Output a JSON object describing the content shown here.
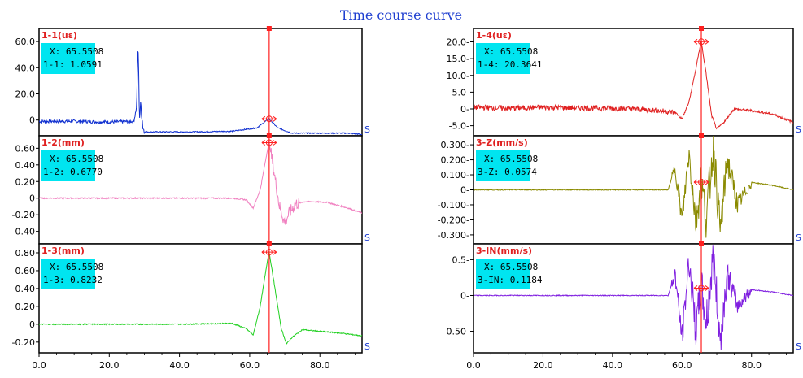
{
  "title": "Time course curve",
  "x_unit": "S",
  "cursor_x": 65.5508,
  "chart_data": {
    "type": "line",
    "title": "Time course curve",
    "xlim": [
      0,
      92
    ],
    "x_ticks": [
      0,
      20,
      40,
      60,
      80
    ],
    "x_tick_labels": [
      "0.0",
      "20.0",
      "40.0",
      "60.0",
      "80.0"
    ],
    "panels": [
      {
        "name": "1-1(uε)",
        "column": 0,
        "row": 0,
        "color": "#1030d0",
        "ylim": [
          -12,
          70
        ],
        "yticks": [
          60,
          40,
          20,
          0
        ],
        "ytick_labels": [
          "60.0",
          "40.0",
          "20.0",
          "0"
        ],
        "cursor_x_text": "X: 65.5508",
        "cursor_value_text": "1-1: 1.0591",
        "points": [
          [
            0,
            -1
          ],
          [
            10,
            -1
          ],
          [
            20,
            -1.5
          ],
          [
            27,
            -1
          ],
          [
            27.8,
            10
          ],
          [
            28.2,
            61
          ],
          [
            28.6,
            2
          ],
          [
            29,
            12
          ],
          [
            29.6,
            -5
          ],
          [
            30,
            -9
          ],
          [
            35,
            -9
          ],
          [
            45,
            -9
          ],
          [
            55,
            -8.5
          ],
          [
            62,
            -6
          ],
          [
            65.5,
            1
          ],
          [
            68,
            -6
          ],
          [
            72,
            -10
          ],
          [
            80,
            -10
          ],
          [
            88,
            -10
          ],
          [
            92,
            -11
          ]
        ]
      },
      {
        "name": "1-2(mm)",
        "column": 0,
        "row": 1,
        "color": "#f080c0",
        "ylim": [
          -0.55,
          0.75
        ],
        "yticks": [
          0.6,
          0.4,
          0.2,
          0,
          -0.2,
          -0.4
        ],
        "ytick_labels": [
          "0.60",
          "0.40",
          "0.20",
          "0",
          "-0.20",
          "-0.40"
        ],
        "cursor_x_text": "X: 65.5508",
        "cursor_value_text": "1-2: 0.6770",
        "points": [
          [
            0,
            0
          ],
          [
            20,
            0
          ],
          [
            40,
            0
          ],
          [
            55,
            0
          ],
          [
            59,
            -0.02
          ],
          [
            61,
            -0.12
          ],
          [
            63,
            0.1
          ],
          [
            65.5,
            0.68
          ],
          [
            67,
            0.3
          ],
          [
            68.5,
            -0.1
          ],
          [
            70,
            -0.3
          ],
          [
            71,
            -0.2
          ],
          [
            73,
            -0.07
          ],
          [
            76,
            -0.04
          ],
          [
            82,
            -0.05
          ],
          [
            88,
            -0.12
          ],
          [
            92,
            -0.18
          ]
        ]
      },
      {
        "name": "1-3(mm)",
        "column": 0,
        "row": 2,
        "color": "#20d020",
        "ylim": [
          -0.32,
          0.9
        ],
        "yticks": [
          0.8,
          0.6,
          0.4,
          0.2,
          0,
          -0.2
        ],
        "ytick_labels": [
          "0.80",
          "0.60",
          "0.40",
          "0.20",
          "0",
          "-0.20"
        ],
        "cursor_x_text": "X: 65.5508",
        "cursor_value_text": "1-3: 0.8232",
        "points": [
          [
            0,
            0
          ],
          [
            20,
            0
          ],
          [
            40,
            0
          ],
          [
            55,
            0.01
          ],
          [
            59,
            -0.05
          ],
          [
            61,
            -0.12
          ],
          [
            63,
            0.2
          ],
          [
            65.5,
            0.82
          ],
          [
            67,
            0.45
          ],
          [
            69,
            -0.05
          ],
          [
            70.5,
            -0.22
          ],
          [
            72,
            -0.15
          ],
          [
            75,
            -0.06
          ],
          [
            80,
            -0.08
          ],
          [
            86,
            -0.1
          ],
          [
            92,
            -0.13
          ]
        ]
      },
      {
        "name": "1-4(uε)",
        "column": 1,
        "row": 0,
        "color": "#e02020",
        "ylim": [
          -8,
          24
        ],
        "yticks": [
          20,
          15,
          10,
          5,
          0,
          -5
        ],
        "ytick_labels": [
          "20.0-",
          "15.0-",
          "10.0-",
          "5.0-",
          "0-",
          "-5.0-"
        ],
        "cursor_x_text": "X: 65.5508",
        "cursor_value_text": "1-4: 20.3641",
        "points": [
          [
            0,
            0.5
          ],
          [
            10,
            0.2
          ],
          [
            20,
            0.5
          ],
          [
            30,
            0.3
          ],
          [
            40,
            0.2
          ],
          [
            50,
            -0.2
          ],
          [
            58,
            -1
          ],
          [
            60,
            -3
          ],
          [
            62,
            2
          ],
          [
            64,
            12
          ],
          [
            65.5,
            20.4
          ],
          [
            67,
            10
          ],
          [
            68.5,
            -2
          ],
          [
            70,
            -6
          ],
          [
            72,
            -4
          ],
          [
            75,
            0
          ],
          [
            80,
            -0.5
          ],
          [
            86,
            -1.5
          ],
          [
            92,
            -4
          ]
        ]
      },
      {
        "name": "3-Z(mm/s)",
        "column": 1,
        "row": 1,
        "color": "#8a8a00",
        "ylim": [
          -0.36,
          0.36
        ],
        "yticks": [
          0.3,
          0.2,
          0.1,
          0,
          -0.1,
          -0.2,
          -0.3
        ],
        "ytick_labels": [
          "0.300-",
          "0.200-",
          "0.100-",
          "0-",
          "-0.100-",
          "-0.200-",
          "-0.300-"
        ],
        "cursor_x_text": "X: 65.5508",
        "cursor_value_text": "3-Z: 0.0574",
        "points": [
          [
            0,
            0
          ],
          [
            20,
            0
          ],
          [
            40,
            0
          ],
          [
            56,
            0
          ],
          [
            58,
            0.15
          ],
          [
            60,
            -0.2
          ],
          [
            62,
            0.25
          ],
          [
            64,
            -0.22
          ],
          [
            65.5,
            0.06
          ],
          [
            67,
            -0.2
          ],
          [
            69,
            0.3
          ],
          [
            71,
            -0.28
          ],
          [
            73,
            0.2
          ],
          [
            76,
            -0.1
          ],
          [
            80,
            0.05
          ],
          [
            86,
            0.03
          ],
          [
            92,
            0
          ]
        ]
      },
      {
        "name": "3-IN(mm/s)",
        "column": 1,
        "row": 2,
        "color": "#8020e0",
        "ylim": [
          -0.8,
          0.72
        ],
        "yticks": [
          0.5,
          0,
          -0.5
        ],
        "ytick_labels": [
          "0.5-",
          "0-",
          "-0.50-"
        ],
        "cursor_x_text": "X: 65.5508",
        "cursor_value_text": "3-IN: 0.1184",
        "points": [
          [
            0,
            0
          ],
          [
            20,
            0
          ],
          [
            40,
            0
          ],
          [
            56,
            0
          ],
          [
            58,
            0.3
          ],
          [
            60,
            -0.6
          ],
          [
            62,
            0.5
          ],
          [
            64,
            -0.5
          ],
          [
            65.5,
            0.12
          ],
          [
            67,
            -0.4
          ],
          [
            69,
            0.55
          ],
          [
            71,
            -0.65
          ],
          [
            73,
            0.3
          ],
          [
            76,
            -0.15
          ],
          [
            80,
            0.08
          ],
          [
            86,
            0.05
          ],
          [
            92,
            0
          ]
        ]
      }
    ]
  }
}
